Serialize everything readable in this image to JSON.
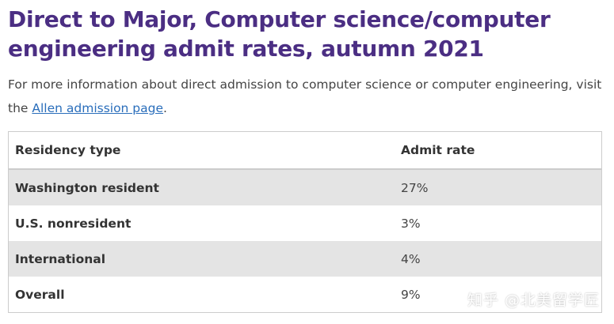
{
  "heading": {
    "title": "Direct to Major, Computer science/computer engineering admit rates, autumn 2021"
  },
  "intro": {
    "text_before": "For more information about direct admission to computer science or computer engineering, visit the ",
    "link_text": "Allen admission page",
    "text_after": "."
  },
  "table": {
    "headers": {
      "residency": "Residency type",
      "rate": "Admit rate"
    },
    "rows": [
      {
        "residency": "Washington resident",
        "rate": "27%"
      },
      {
        "residency": "U.S. nonresident",
        "rate": "3%"
      },
      {
        "residency": "International",
        "rate": "4%"
      },
      {
        "residency": "Overall",
        "rate": "9%"
      }
    ]
  },
  "watermark": {
    "text": "知乎 @北美留学匠"
  },
  "colors": {
    "title": "#4b2e83",
    "link": "#2a6ebb",
    "row_shade": "#e4e4e4"
  }
}
